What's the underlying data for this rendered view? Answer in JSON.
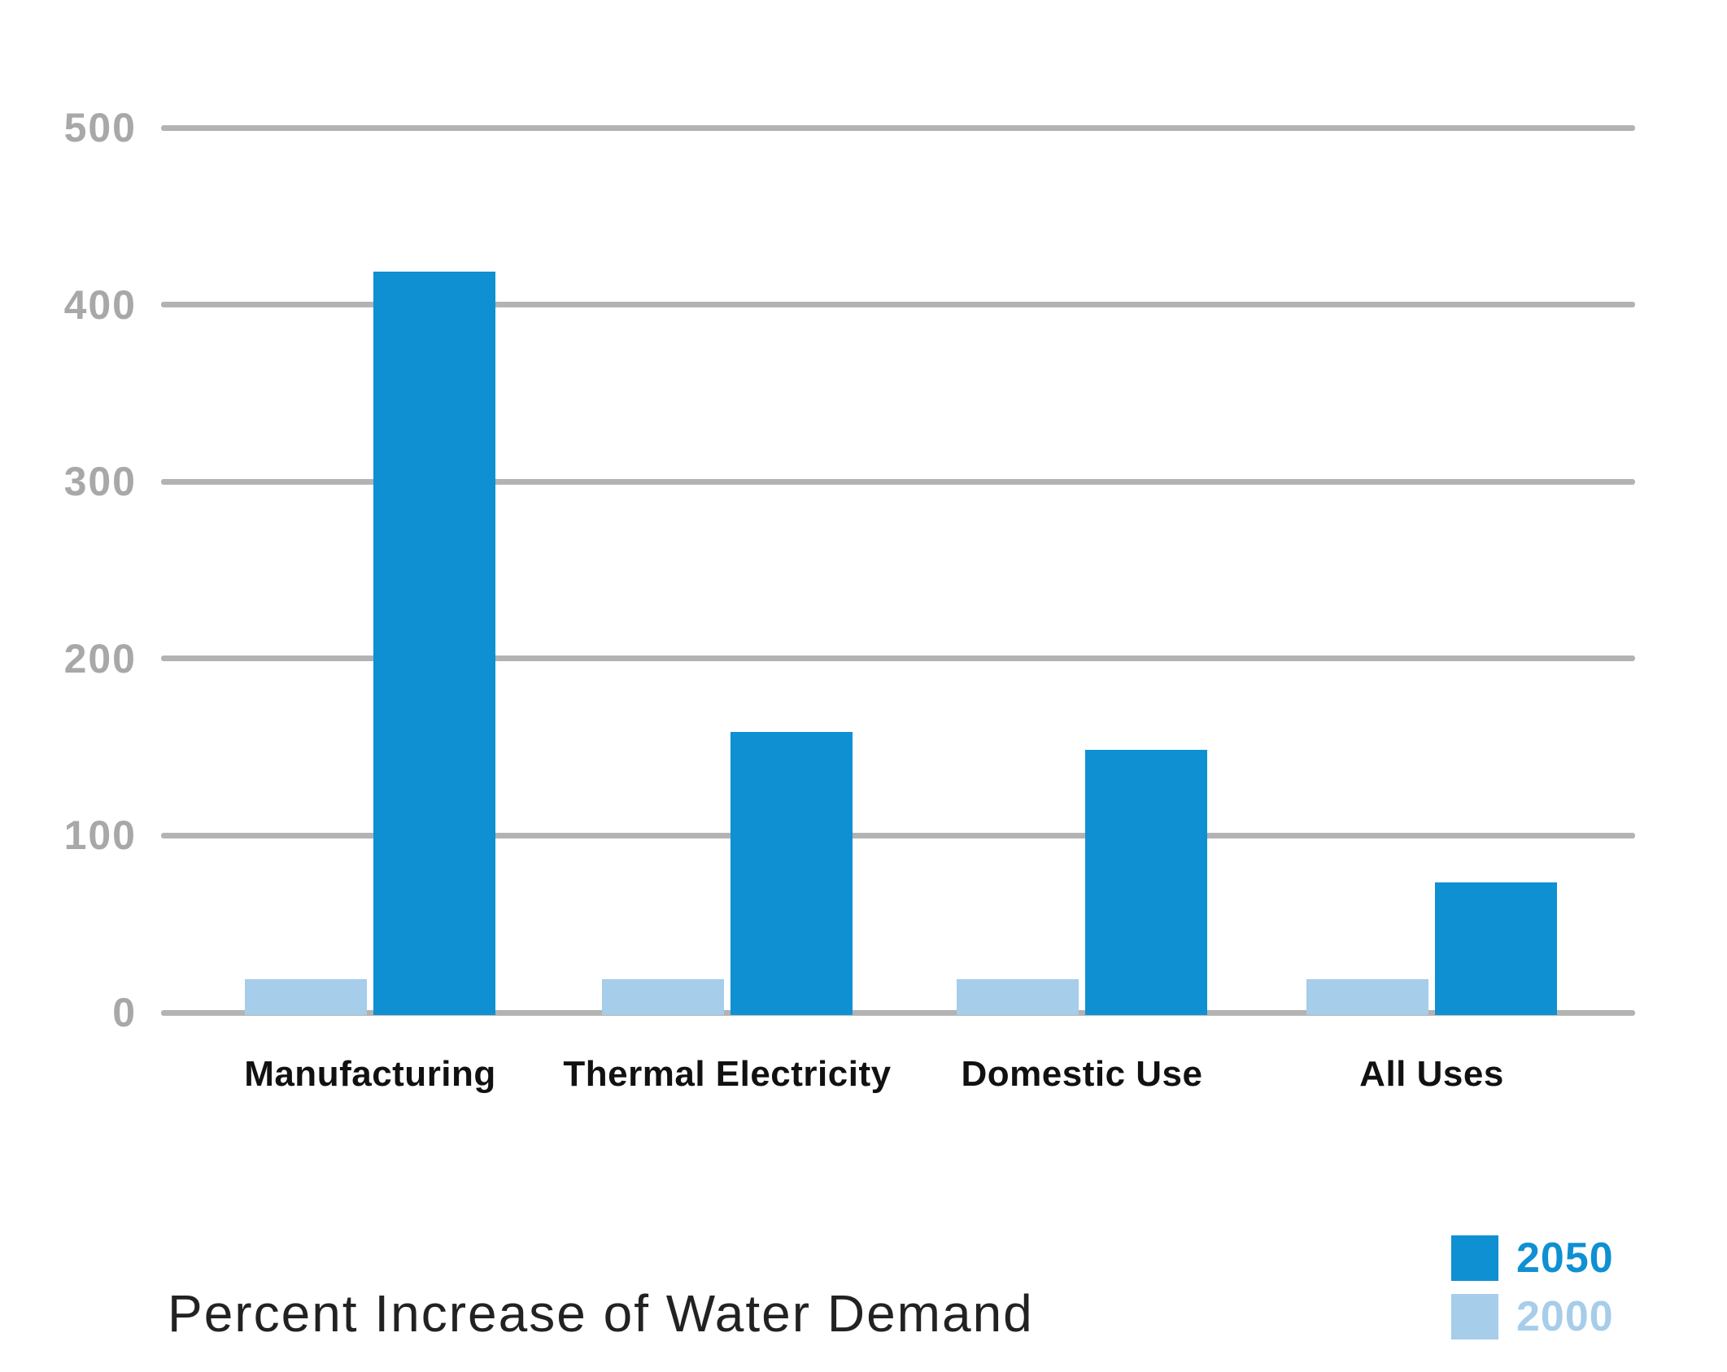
{
  "chart_data": {
    "type": "bar",
    "title": "Percent Increase of Water Demand",
    "categories": [
      "Manufacturing",
      "Thermal Electricity",
      "Domestic Use",
      "All Uses"
    ],
    "series": [
      {
        "name": "2050",
        "color": "#0f90d2",
        "values": [
          420,
          160,
          150,
          75
        ]
      },
      {
        "name": "2000",
        "color": "#a6cde9",
        "values": [
          20,
          20,
          20,
          20
        ]
      }
    ],
    "group_bar_order": [
      "2000",
      "2050"
    ],
    "xlabel": "",
    "ylabel": "",
    "ylim": [
      0,
      500
    ],
    "y_ticks": [
      500,
      400,
      300,
      200,
      100,
      0
    ],
    "grid": true,
    "gridline_color": "#b3b3b3",
    "axis_tick_color": "#a8a8a8",
    "legend_position": "bottom-right",
    "legend_entries": [
      {
        "label": "2050",
        "color": "#0f90d2"
      },
      {
        "label": "2000",
        "color": "#a6cde9"
      }
    ]
  }
}
